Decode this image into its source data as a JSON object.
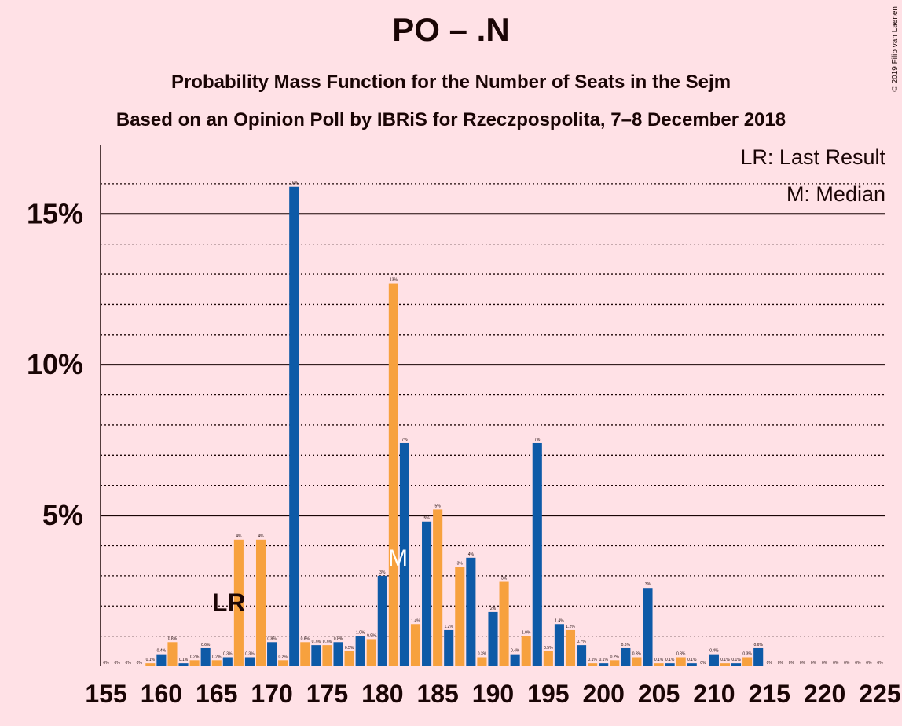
{
  "chart_data": {
    "type": "bar",
    "title": "PO – .N",
    "subtitle": "Probability Mass Function for the Number of Seats in the Sejm",
    "subtitle2": "Based on an Opinion Poll by IBRiS for Rzeczpospolita, 7–8 December 2018",
    "copyright": "© 2019 Filip van Laenen",
    "x": [
      155,
      156,
      157,
      158,
      159,
      160,
      161,
      162,
      163,
      164,
      165,
      166,
      167,
      168,
      169,
      170,
      171,
      172,
      173,
      174,
      175,
      176,
      177,
      178,
      179,
      180,
      181,
      182,
      183,
      184,
      185,
      186,
      187,
      188,
      189,
      190,
      191,
      192,
      193,
      194,
      195,
      196,
      197,
      198,
      199,
      200,
      201,
      202,
      203,
      204,
      205,
      206,
      207,
      208,
      209,
      210,
      211,
      212,
      213,
      214,
      215,
      216,
      217,
      218,
      219,
      220,
      221,
      222,
      223,
      224,
      225
    ],
    "values": [
      0,
      0,
      0,
      0,
      0.1,
      0.4,
      0.8,
      0.1,
      0.2,
      0.6,
      0.2,
      0.3,
      4.2,
      0.3,
      4.2,
      0.8,
      0.2,
      15.9,
      0.8,
      0.7,
      0.7,
      0.8,
      0.5,
      1.0,
      0.9,
      3.0,
      12.7,
      7.4,
      1.4,
      4.8,
      5.2,
      1.2,
      3.3,
      3.6,
      0.3,
      1.8,
      2.8,
      0.4,
      1.0,
      7.4,
      0.5,
      1.4,
      1.2,
      0.7,
      0.1,
      0.1,
      0.2,
      0.6,
      0.3,
      2.6,
      0.1,
      0.1,
      0.3,
      0.1,
      0,
      0.4,
      0.1,
      0.1,
      0.3,
      0.6,
      0,
      0,
      0,
      0,
      0,
      0,
      0,
      0,
      0,
      0,
      0
    ],
    "value_labels": [
      "0%",
      "0%",
      "0%",
      "0%",
      "0.1%",
      "0.4%",
      "0.8%",
      "0.1%",
      "0.2%",
      "0.6%",
      "0.2%",
      "0.3%",
      "4%",
      "0.3%",
      "4%",
      "0.8%",
      "0.2%",
      "16%",
      "0.8%",
      "0.7%",
      "0.7%",
      "0.8%",
      "0.5%",
      "1.0%",
      "0.9%",
      "3%",
      "13%",
      "7%",
      "1.4%",
      "5%",
      "5%",
      "1.2%",
      "3%",
      "4%",
      "0.3%",
      "2%",
      "3%",
      "0.4%",
      "1.0%",
      "7%",
      "0.5%",
      "1.4%",
      "1.2%",
      "0.7%",
      "0.1%",
      "0.1%",
      "0.2%",
      "0.6%",
      "0.3%",
      "3%",
      "0.1%",
      "0.1%",
      "0.3%",
      "0.1%",
      "0%",
      "0.4%",
      "0.1%",
      "0.1%",
      "0.3%",
      "0.6%",
      "0%",
      "0%",
      "0%",
      "0%",
      "0%",
      "0%",
      "0%",
      "0%",
      "0%",
      "0%",
      "0%"
    ],
    "bar_colors": [
      "#f7a13e",
      "#0e5aa7"
    ],
    "xlim": [
      154.5,
      225.5
    ],
    "xticks": [
      155,
      160,
      165,
      170,
      175,
      180,
      185,
      190,
      195,
      200,
      205,
      210,
      215,
      220,
      225
    ],
    "ylim": [
      0,
      17.3
    ],
    "yticks": [
      {
        "value": 5,
        "label": "5%"
      },
      {
        "value": 10,
        "label": "10%"
      },
      {
        "value": 15,
        "label": "15%"
      }
    ],
    "minor_yticks": [
      1,
      2,
      3,
      4,
      6,
      7,
      8,
      9,
      11,
      12,
      13,
      14,
      16
    ],
    "annotations": [
      {
        "label": "LR",
        "x": 167
      },
      {
        "label": "M",
        "x": 182
      }
    ],
    "legend": [
      "LR: Last Result",
      "M: Median"
    ],
    "legend_corner": "top-right"
  }
}
